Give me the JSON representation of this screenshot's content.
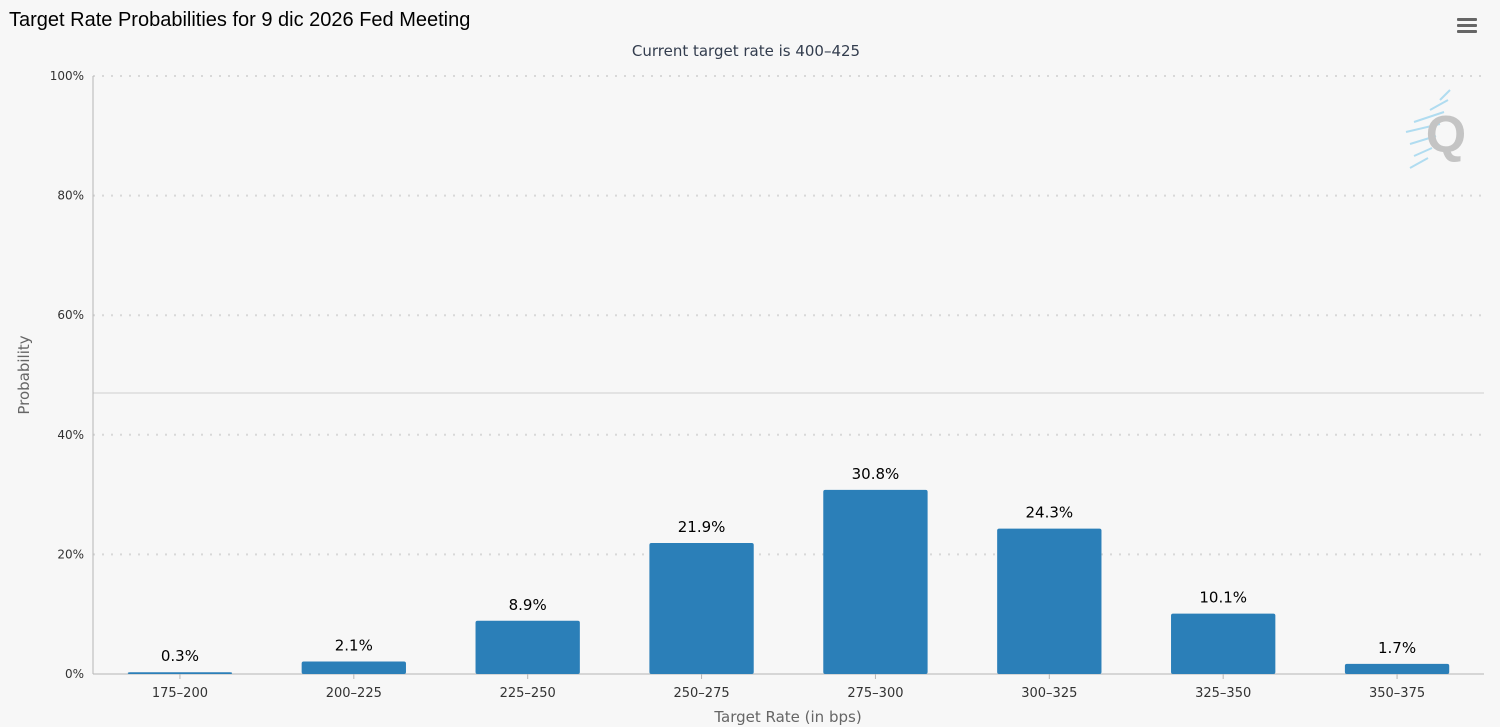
{
  "header": {
    "title": "Target Rate Probabilities for 9 dic 2026 Fed Meeting",
    "menu_icon": "hamburger-menu-icon"
  },
  "watermark": {
    "text": "Q",
    "icon": "quikstrike-logo-icon"
  },
  "colors": {
    "bar": "#2b7fb8",
    "background": "#f7f7f7",
    "grid": "#d8d8d8"
  },
  "chart_data": {
    "type": "bar",
    "title": "Target Rate Probabilities for 9 dic 2026 Fed Meeting",
    "subtitle": "Current target rate is 400–425",
    "xlabel": "Target Rate (in bps)",
    "ylabel": "Probability",
    "categories": [
      "175–200",
      "200–225",
      "225–250",
      "250–275",
      "275–300",
      "300–325",
      "325–350",
      "350–375"
    ],
    "values": [
      0.3,
      2.1,
      8.9,
      21.9,
      30.8,
      24.3,
      10.1,
      1.7
    ],
    "data_labels": [
      "0.3%",
      "2.1%",
      "8.9%",
      "21.9%",
      "30.8%",
      "24.3%",
      "10.1%",
      "1.7%"
    ],
    "yticks": [
      "0%",
      "20%",
      "40%",
      "60%",
      "80%",
      "100%"
    ],
    "ytick_values": [
      0,
      20,
      40,
      60,
      80,
      100
    ],
    "ylim": [
      0,
      100
    ],
    "grid": true,
    "legend": "none"
  }
}
